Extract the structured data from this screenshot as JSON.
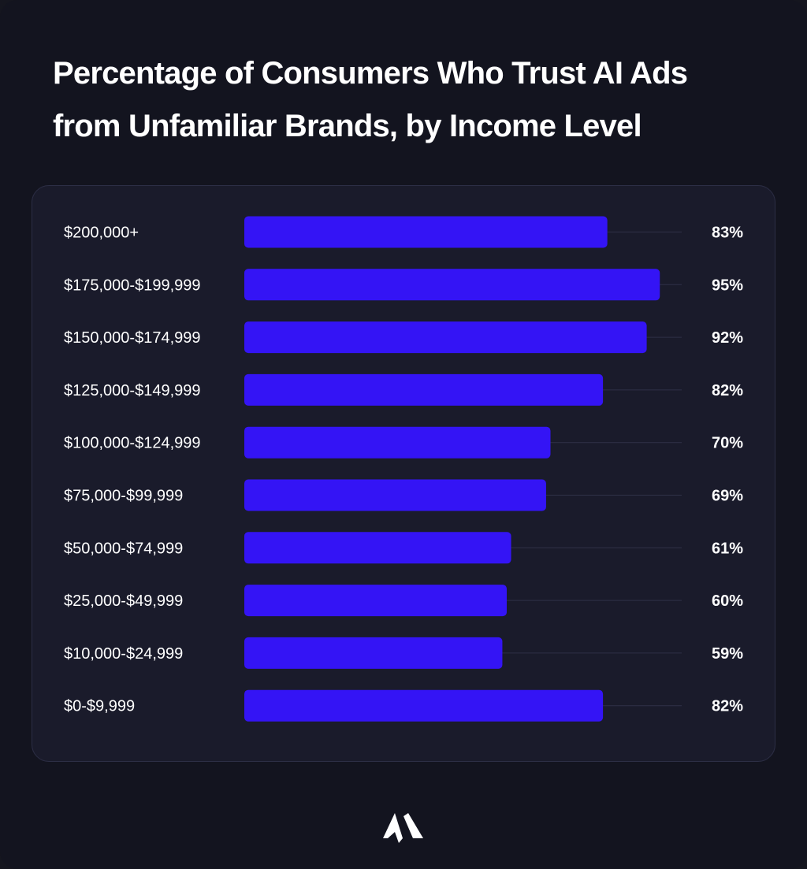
{
  "colors": {
    "bar": "#3414f5",
    "track": "#2f3147",
    "text": "#ffffff",
    "background": "#13141f",
    "card": "#1a1b2b"
  },
  "logo": {
    "icon": "brand-logo-icon"
  },
  "chart_data": {
    "type": "bar",
    "orientation": "horizontal",
    "title": "Percentage of Consumers Who Trust AI Ads from Unfamiliar Brands, by Income Level",
    "xlabel": "",
    "ylabel": "",
    "xlim": [
      0,
      100
    ],
    "grid": false,
    "legend": "none",
    "categories": [
      "$200,000+",
      "$175,000-$199,999",
      "$150,000-$174,999",
      "$125,000-$149,999",
      "$100,000-$124,999",
      "$75,000-$99,999",
      "$50,000-$74,999",
      "$25,000-$49,999",
      "$10,000-$24,999",
      "$0-$9,999"
    ],
    "values": [
      83,
      95,
      92,
      82,
      70,
      69,
      61,
      60,
      59,
      82
    ],
    "value_labels": [
      "83%",
      "95%",
      "92%",
      "82%",
      "70%",
      "69%",
      "61%",
      "60%",
      "59%",
      "82%"
    ]
  }
}
